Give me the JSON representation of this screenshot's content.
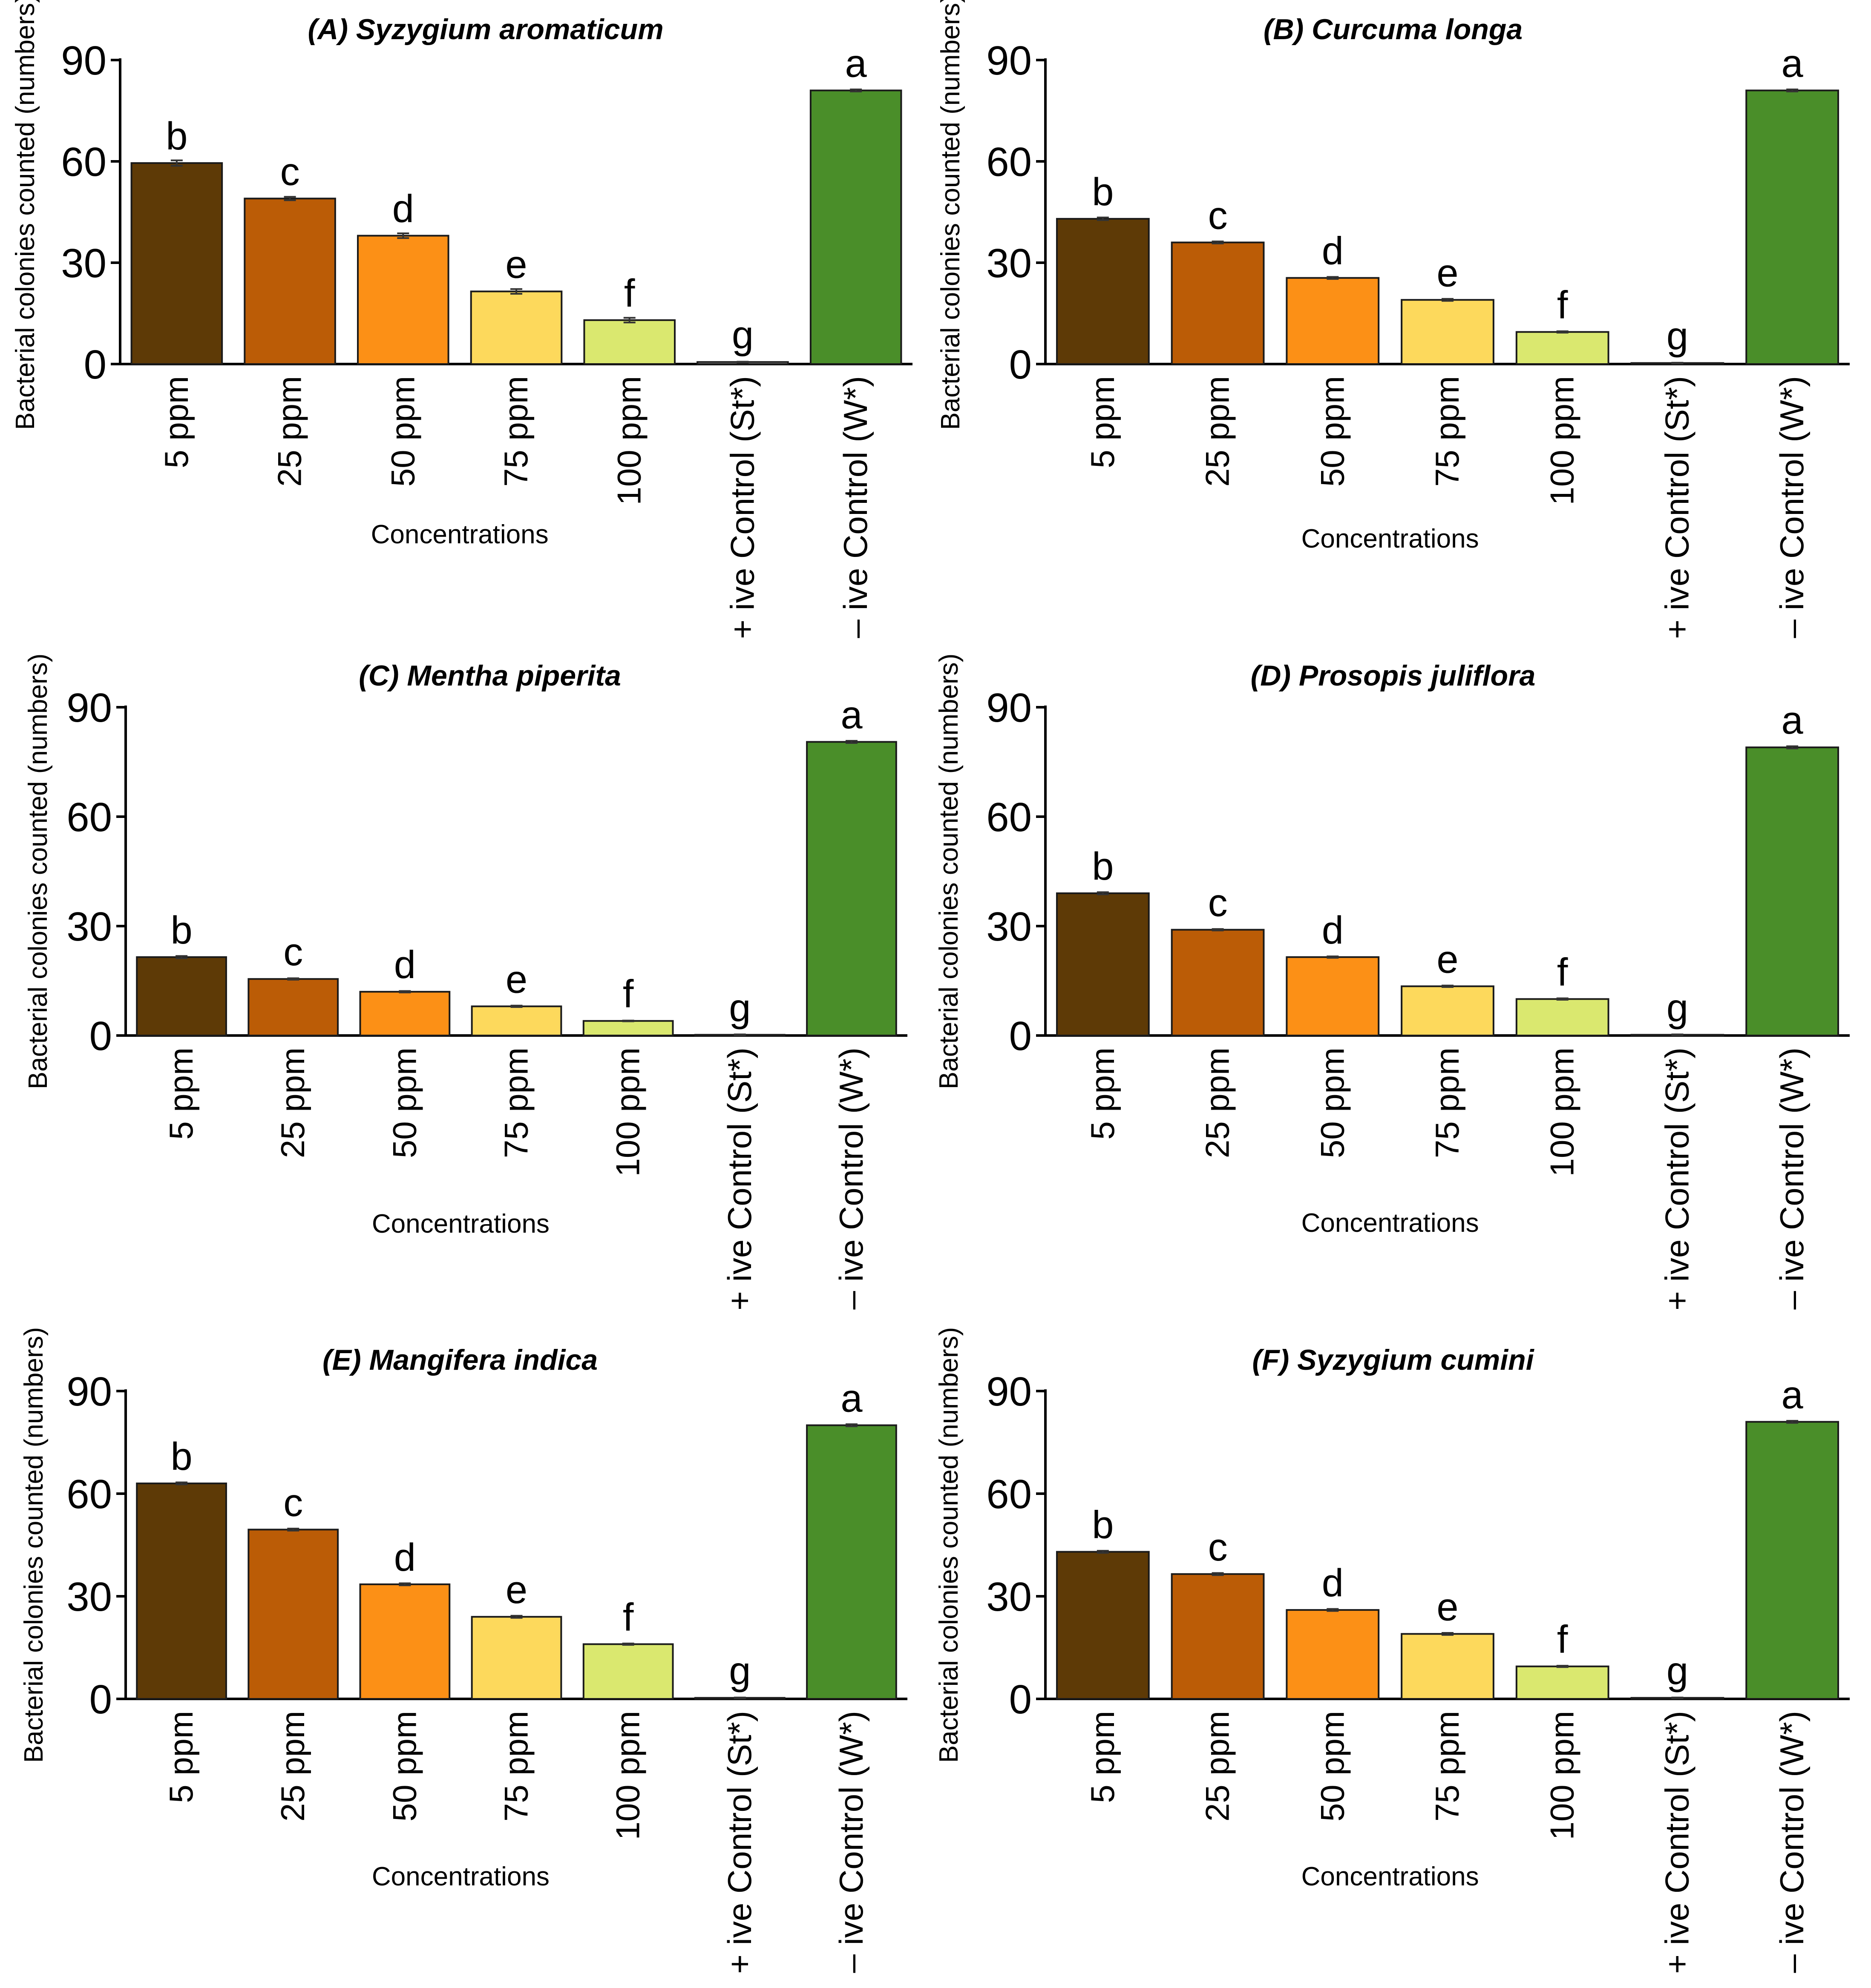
{
  "colors": [
    "#5e3a06",
    "#bb5c06",
    "#fc9016",
    "#fdd95c",
    "#dae86f",
    "#cccccc",
    "#4a8e29"
  ],
  "chart_data": [
    {
      "type": "bar",
      "title": "(A) Syzygium aromaticum",
      "xlabel": "Concentrations",
      "ylabel": "Bacterial colonies counted (numbers)",
      "ylim": [
        0,
        90
      ],
      "yticks": [
        "0",
        "30",
        "60",
        "90"
      ],
      "categories": [
        "5 ppm",
        "25 ppm",
        "50 ppm",
        "75 ppm",
        "100 ppm",
        "+ ive Control (St*)",
        "– ive Control (W*)"
      ],
      "values": [
        59.5,
        49,
        38,
        21.5,
        13,
        0.6,
        81
      ],
      "errors": [
        0.8,
        0.5,
        0.7,
        0.7,
        0.7,
        0.1,
        0.3
      ],
      "labels": [
        "b",
        "c",
        "d",
        "e",
        "f",
        "g",
        "a"
      ]
    },
    {
      "type": "bar",
      "title": "(B) Curcuma longa",
      "xlabel": "Concentrations",
      "ylabel": "Bacterial colonies counted (numbers)",
      "ylim": [
        0,
        90
      ],
      "yticks": [
        "0",
        "30",
        "60",
        "90"
      ],
      "categories": [
        "5 ppm",
        "25 ppm",
        "50 ppm",
        "75 ppm",
        "100 ppm",
        "+ ive Control (St*)",
        "– ive Control (W*)"
      ],
      "values": [
        43,
        36,
        25.5,
        19,
        9.5,
        0.3,
        81
      ],
      "errors": [
        0.4,
        0.3,
        0.3,
        0.3,
        0.2,
        0.1,
        0.3
      ],
      "labels": [
        "b",
        "c",
        "d",
        "e",
        "f",
        "g",
        "a"
      ]
    },
    {
      "type": "bar",
      "title": "(C) Mentha piperita",
      "xlabel": "Concentrations",
      "ylabel": "Bacterial colonies counted (numbers)",
      "ylim": [
        0,
        90
      ],
      "yticks": [
        "0",
        "30",
        "60",
        "90"
      ],
      "categories": [
        "5 ppm",
        "25 ppm",
        "50 ppm",
        "75 ppm",
        "100 ppm",
        "+ ive Control (St*)",
        "– ive Control (W*)"
      ],
      "values": [
        21.5,
        15.5,
        12,
        8,
        4,
        0.2,
        80.5
      ],
      "errors": [
        0.3,
        0.2,
        0.2,
        0.2,
        0.1,
        0.1,
        0.3
      ],
      "labels": [
        "b",
        "c",
        "d",
        "e",
        "f",
        "g",
        "a"
      ]
    },
    {
      "type": "bar",
      "title": "(D) Prosopis juliflora",
      "xlabel": "Concentrations",
      "ylabel": "Bacterial colonies counted (numbers)",
      "ylim": [
        0,
        90
      ],
      "yticks": [
        "0",
        "30",
        "60",
        "90"
      ],
      "categories": [
        "5 ppm",
        "25 ppm",
        "50 ppm",
        "75 ppm",
        "100 ppm",
        "+ ive Control (St*)",
        "– ive Control (W*)"
      ],
      "values": [
        39,
        29,
        21.5,
        13.5,
        10,
        0.2,
        79
      ],
      "errors": [
        0.3,
        0.2,
        0.2,
        0.2,
        0.2,
        0.1,
        0.3
      ],
      "labels": [
        "b",
        "c",
        "d",
        "e",
        "f",
        "g",
        "a"
      ]
    },
    {
      "type": "bar",
      "title": "(E) Mangifera indica",
      "xlabel": "Concentrations",
      "ylabel": "Bacterial colonies counted (numbers)",
      "ylim": [
        0,
        90
      ],
      "yticks": [
        "0",
        "30",
        "60",
        "90"
      ],
      "categories": [
        "5 ppm",
        "25 ppm",
        "50 ppm",
        "75 ppm",
        "100 ppm",
        "+ ive Control (St*)",
        "– ive Control (W*)"
      ],
      "values": [
        63,
        49.5,
        33.5,
        24,
        16,
        0.3,
        80
      ],
      "errors": [
        0.3,
        0.3,
        0.3,
        0.3,
        0.2,
        0.1,
        0.3
      ],
      "labels": [
        "b",
        "c",
        "d",
        "e",
        "f",
        "g",
        "a"
      ]
    },
    {
      "type": "bar",
      "title": "(F) Syzygium cumini",
      "xlabel": "Concentrations",
      "ylabel": "Bacterial colonies counted (numbers)",
      "ylim": [
        0,
        90
      ],
      "yticks": [
        "0",
        "30",
        "60",
        "90"
      ],
      "categories": [
        "5 ppm",
        "25 ppm",
        "50 ppm",
        "75 ppm",
        "100 ppm",
        "+ ive Control (St*)",
        "– ive Control (W*)"
      ],
      "values": [
        43,
        36.5,
        26,
        19,
        9.5,
        0.3,
        81
      ],
      "errors": [
        0.3,
        0.3,
        0.3,
        0.3,
        0.2,
        0.1,
        0.3
      ],
      "labels": [
        "b",
        "c",
        "d",
        "e",
        "f",
        "g",
        "a"
      ]
    }
  ]
}
